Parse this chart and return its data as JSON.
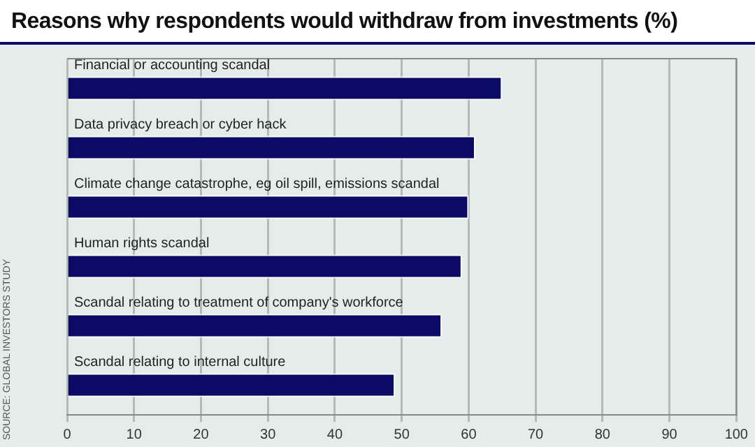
{
  "chart_data": {
    "type": "bar",
    "orientation": "horizontal",
    "title": "Reasons why respondents would withdraw from investments (%)",
    "categories": [
      "Financial or accounting scandal",
      "Data privacy breach or cyber hack",
      "Climate change catastrophe, eg oil spill, emissions scandal",
      "Human rights scandal",
      "Scandal relating to treatment of company's workforce",
      "Scandal relating to internal culture"
    ],
    "values": [
      65,
      61,
      60,
      59,
      56,
      49
    ],
    "color": "#0b0b66",
    "xlim": [
      0,
      100
    ],
    "xticks": [
      0,
      10,
      20,
      30,
      40,
      50,
      60,
      70,
      80,
      90,
      100
    ],
    "grid": "x",
    "legend": false,
    "annotations": [
      "SOURCE: GLOBAL INVESTORS STUDY"
    ]
  }
}
